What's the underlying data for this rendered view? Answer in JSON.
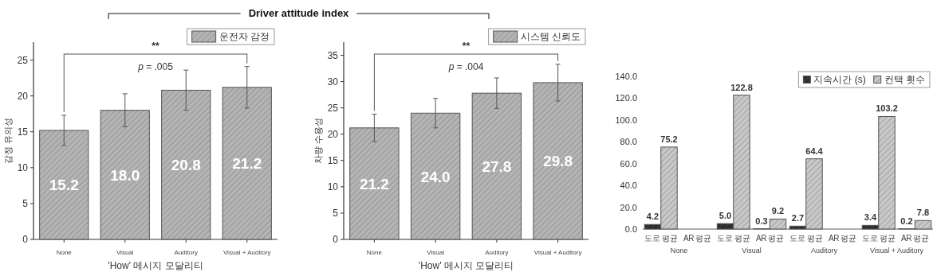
{
  "chart_data": [
    {
      "type": "bar",
      "title": "Driver attitude index",
      "xlabel": "'How' 메시지 모달리티",
      "ylabel": "감정 유의성",
      "categories": [
        "None",
        "Visual",
        "Auditory",
        "Visual + Auditory"
      ],
      "series": [
        {
          "name": "운전자 감정",
          "color": "#b4b4b4",
          "values": [
            15.2,
            18.0,
            20.8,
            21.2
          ],
          "value_labels": [
            "15.2",
            "18.0",
            "20.8",
            "21.2"
          ],
          "errors": [
            2.1,
            2.3,
            2.8,
            2.9
          ]
        }
      ],
      "ylim": [
        0,
        27.5
      ],
      "yticks": [
        0,
        5,
        10,
        15,
        20,
        25
      ],
      "legend": "top right",
      "grid": false,
      "annotations": [
        "**",
        "p = .005"
      ]
    },
    {
      "type": "bar",
      "xlabel": "'How' 메시지 모달리티",
      "ylabel": "차량 수용성",
      "categories": [
        "None",
        "Visual",
        "Auditory",
        "Visual + Auditory"
      ],
      "series": [
        {
          "name": "시스템 신뢰도",
          "color": "#b4b4b4",
          "values": [
            21.2,
            24.0,
            27.8,
            29.8
          ],
          "value_labels": [
            "21.2",
            "24.0",
            "27.8",
            "29.8"
          ],
          "errors": [
            2.6,
            2.8,
            2.9,
            3.5
          ]
        }
      ],
      "ylim": [
        0,
        37.5
      ],
      "yticks": [
        0,
        5,
        10,
        15,
        20,
        25,
        30,
        35
      ],
      "legend": "top right",
      "grid": false,
      "annotations": [
        "**",
        "p = .004"
      ]
    },
    {
      "type": "bar",
      "categories": [
        "도로 평균",
        "AR 평균",
        "도로 평균",
        "AR 평균",
        "도로 평균",
        "AR 평균",
        "도로 평균",
        "AR 평균"
      ],
      "series": [
        {
          "name": "지속시간 (s)",
          "color": "#2b2b2b",
          "values": [
            4.2,
            null,
            5.0,
            0.3,
            2.7,
            null,
            3.4,
            0.2
          ],
          "value_labels": [
            "4.2",
            null,
            "5.0",
            "0.3",
            "2.7",
            null,
            "3.4",
            "0.2"
          ]
        },
        {
          "name": "컨택 횟수",
          "color": "#c8c8c8",
          "values": [
            75.2,
            null,
            122.8,
            9.2,
            64.4,
            null,
            103.2,
            7.8
          ],
          "value_labels": [
            "75.2",
            null,
            "122.8",
            "9.2",
            "64.4",
            null,
            "103.2",
            "7.8"
          ]
        }
      ],
      "ylim": [
        0,
        140
      ],
      "yticks": [
        {
          "value": 0,
          "label": "0.0"
        },
        {
          "value": 20,
          "label": "20.0"
        },
        {
          "value": 40,
          "label": "40.0"
        },
        {
          "value": 60,
          "label": "60.0"
        },
        {
          "value": 80,
          "label": "80.0"
        },
        {
          "value": 100,
          "label": "100.0"
        },
        {
          "value": 120,
          "label": "120.0"
        },
        {
          "value": 140,
          "label": "140.0"
        }
      ],
      "legend": "top right",
      "grid": false,
      "annotations": [
        "None",
        "Visual",
        "Auditory",
        "Visual + Auditory"
      ]
    }
  ]
}
